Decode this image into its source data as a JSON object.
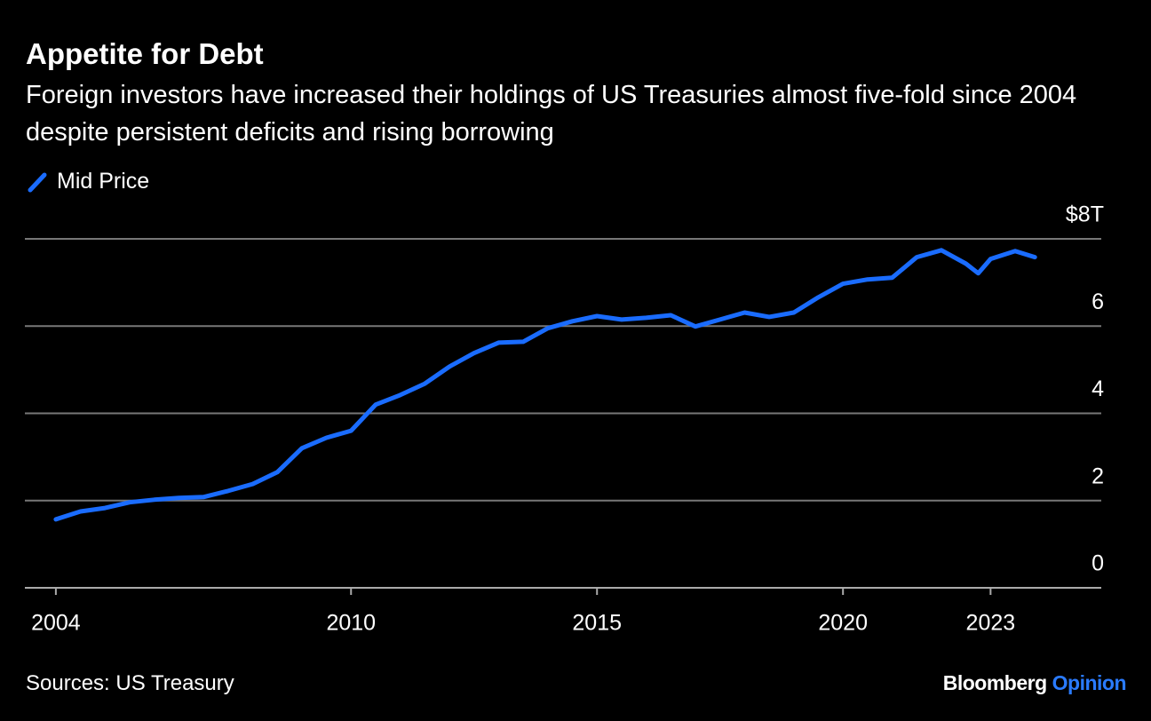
{
  "chart_data": {
    "type": "line",
    "title": "Appetite for Debt",
    "subtitle": "Foreign investors have increased their holdings of US Treasuries almost five-fold since 2004 despite persistent deficits and rising borrowing",
    "source": "Sources: US Treasury",
    "branding": [
      "Bloomberg",
      "Opinion"
    ],
    "x": [
      2004.0,
      2004.5,
      2005.0,
      2005.5,
      2006.0,
      2006.5,
      2007.0,
      2007.5,
      2008.0,
      2008.5,
      2009.0,
      2009.5,
      2010.0,
      2010.5,
      2011.0,
      2011.5,
      2012.0,
      2012.5,
      2013.0,
      2013.5,
      2014.0,
      2014.5,
      2015.0,
      2015.5,
      2016.0,
      2016.5,
      2017.0,
      2017.5,
      2018.0,
      2018.5,
      2019.0,
      2019.5,
      2020.0,
      2020.5,
      2021.0,
      2021.5,
      2022.0,
      2022.5,
      2022.75,
      2023.0,
      2023.5,
      2023.9
    ],
    "series": [
      {
        "name": "Mid Price",
        "color": "#1a6cff",
        "values": [
          1.57,
          1.75,
          1.83,
          1.96,
          2.02,
          2.06,
          2.08,
          2.22,
          2.38,
          2.65,
          3.2,
          3.44,
          3.6,
          4.2,
          4.42,
          4.68,
          5.07,
          5.38,
          5.62,
          5.64,
          5.95,
          6.11,
          6.23,
          6.15,
          6.19,
          6.25,
          5.99,
          6.15,
          6.31,
          6.21,
          6.31,
          6.66,
          6.97,
          7.07,
          7.11,
          7.58,
          7.74,
          7.43,
          7.21,
          7.54,
          7.72,
          7.58
        ]
      }
    ],
    "xlim": [
      2003.37,
      2025.25
    ],
    "xticks": [
      2004,
      2010,
      2015,
      2020,
      2023
    ],
    "ylim": [
      0,
      8
    ],
    "yticks": [
      0,
      2,
      4,
      6,
      {
        "value": 8,
        "label": "$8T"
      }
    ],
    "grid": true
  }
}
